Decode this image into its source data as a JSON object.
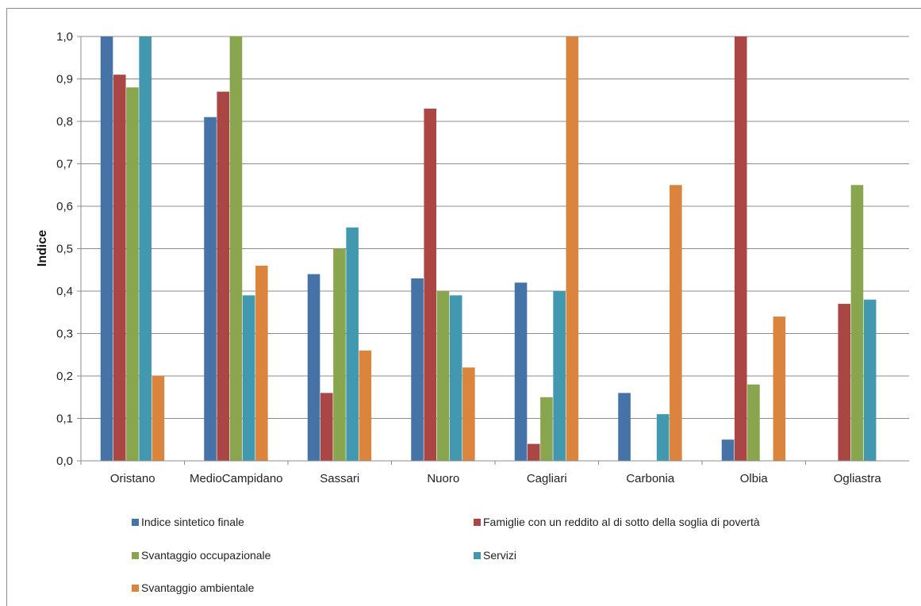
{
  "chart_data": {
    "type": "bar",
    "title": "",
    "xlabel": "",
    "ylabel": "Indice",
    "ylim": [
      0,
      1.0
    ],
    "yticks": [
      "0,0",
      "0,1",
      "0,2",
      "0,3",
      "0,4",
      "0,5",
      "0,6",
      "0,7",
      "0,8",
      "0,9",
      "1,0"
    ],
    "grid": true,
    "legend_position": "bottom",
    "categories": [
      "Oristano",
      "MedioCampidano",
      "Sassari",
      "Nuoro",
      "Cagliari",
      "Carbonia",
      "Olbia",
      "Ogliastra"
    ],
    "series": [
      {
        "name": "Indice sintetico finale",
        "color": "#4572a7",
        "values": [
          1.0,
          0.81,
          0.44,
          0.43,
          0.42,
          0.16,
          0.05,
          0.0
        ]
      },
      {
        "name": "Famiglie con un reddito al di sotto della soglia di povertà",
        "color": "#aa4643",
        "values": [
          0.91,
          0.87,
          0.16,
          0.83,
          0.04,
          0.0,
          1.0,
          0.37
        ]
      },
      {
        "name": "Svantaggio occupazionale",
        "color": "#89a54e",
        "values": [
          0.88,
          1.0,
          0.5,
          0.4,
          0.15,
          0.0,
          0.18,
          0.65
        ]
      },
      {
        "name": "Servizi",
        "color": "#4198af",
        "values": [
          1.0,
          0.39,
          0.55,
          0.39,
          0.4,
          0.11,
          0.0,
          0.38
        ]
      },
      {
        "name": "Svantaggio ambientale",
        "color": "#db843d",
        "values": [
          0.2,
          0.46,
          0.26,
          0.22,
          1.0,
          0.65,
          0.34,
          0.0
        ]
      }
    ]
  }
}
